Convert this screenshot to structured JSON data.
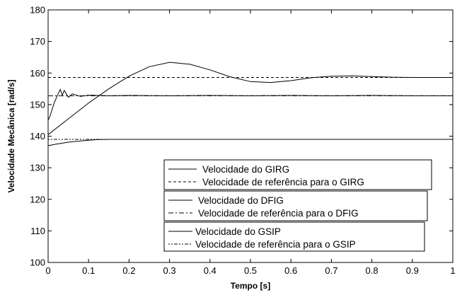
{
  "chart_data": {
    "type": "line",
    "xlabel": "Tempo [s]",
    "ylabel": "Velocidade Mecânica [rad/s]",
    "xlim": [
      0,
      1
    ],
    "ylim": [
      100,
      180
    ],
    "xticks": [
      "0",
      "0.1",
      "0.2",
      "0.3",
      "0.4",
      "0.5",
      "0.6",
      "0.7",
      "0.8",
      "0.9",
      "1"
    ],
    "yticks": [
      "100",
      "110",
      "120",
      "130",
      "140",
      "150",
      "160",
      "170",
      "180"
    ],
    "grid": false,
    "legend_boxes": [
      [
        "Velocidade do GIRG",
        "Velocidade de referência para o GIRG"
      ],
      [
        "Velocidade do DFIG",
        "Velocidade de referência para o DFIG"
      ],
      [
        "Velocidade do GSIP",
        "Velocidade de referência para o GSIP"
      ]
    ],
    "series": [
      {
        "name": "Velocidade do GIRG",
        "style": "solid",
        "x": [
          0,
          0.05,
          0.1,
          0.15,
          0.2,
          0.25,
          0.3,
          0.35,
          0.4,
          0.45,
          0.5,
          0.55,
          0.6,
          0.65,
          0.7,
          0.75,
          0.8,
          0.85,
          0.9,
          0.95,
          1
        ],
        "y": [
          140.5,
          145.5,
          150.5,
          155.0,
          159.0,
          162.0,
          163.4,
          162.8,
          161.0,
          158.8,
          157.3,
          157.0,
          157.6,
          158.5,
          159.0,
          159.1,
          158.9,
          158.7,
          158.6,
          158.6,
          158.6
        ]
      },
      {
        "name": "Velocidade de referência para o GIRG",
        "style": "dashed",
        "x": [
          0,
          1
        ],
        "y": [
          158.6,
          158.6
        ]
      },
      {
        "name": "Velocidade do DFIG",
        "style": "solid",
        "x": [
          0,
          0.005,
          0.01,
          0.015,
          0.02,
          0.025,
          0.03,
          0.035,
          0.04,
          0.05,
          0.06,
          0.08,
          0.1,
          0.15,
          0.2,
          0.3,
          0.4,
          0.5,
          0.6,
          0.7,
          0.8,
          0.9,
          1
        ],
        "y": [
          145,
          146.5,
          148.5,
          150.5,
          152.0,
          153.5,
          154.8,
          153.0,
          154.5,
          152.3,
          153.4,
          152.6,
          153.0,
          152.8,
          152.9,
          152.8,
          152.9,
          152.8,
          152.9,
          152.8,
          152.9,
          152.8,
          152.8
        ]
      },
      {
        "name": "Velocidade de referência para o DFIG",
        "style": "dashdot",
        "x": [
          0,
          1
        ],
        "y": [
          152.8,
          152.8
        ]
      },
      {
        "name": "Velocidade do GSIP",
        "style": "solid",
        "x": [
          0,
          0.02,
          0.05,
          0.08,
          0.1,
          0.12,
          0.15,
          0.2,
          0.3,
          0.4,
          0.5,
          0.6,
          0.7,
          0.8,
          0.9,
          1
        ],
        "y": [
          137.0,
          137.5,
          138.1,
          138.5,
          138.7,
          138.9,
          139.0,
          139.0,
          139.0,
          139.0,
          139.0,
          139.0,
          139.0,
          139.0,
          139.0,
          139.0
        ]
      },
      {
        "name": "Velocidade de referência para o GSIP",
        "style": "dotdash",
        "x": [
          0,
          0.15
        ],
        "y": [
          139.0,
          139.0
        ]
      }
    ]
  }
}
